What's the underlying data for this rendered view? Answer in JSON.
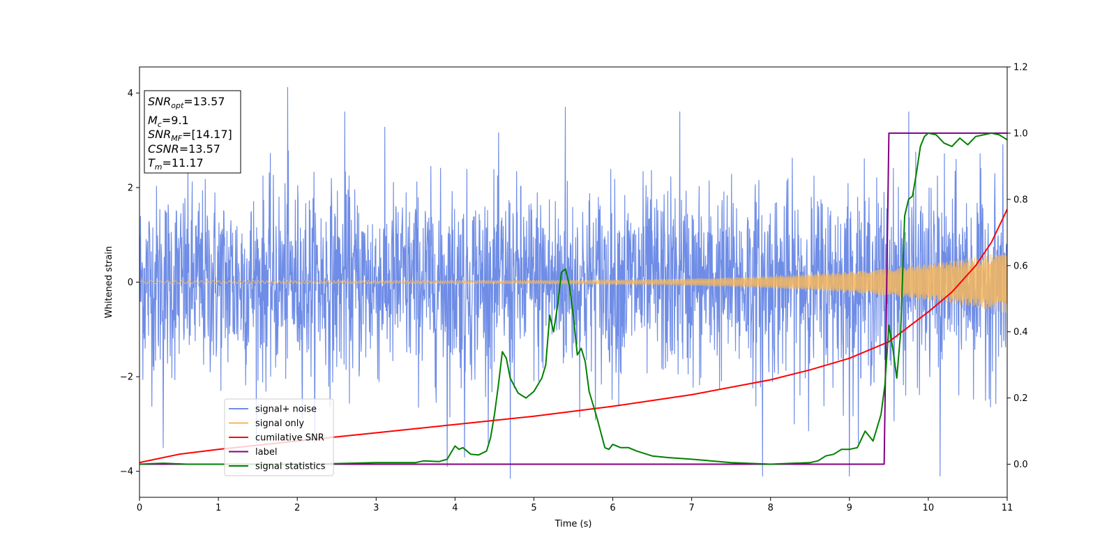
{
  "chart_data": {
    "type": "line",
    "xlabel": "Time (s)",
    "ylabel": "Whitened strain",
    "xlim": [
      0,
      11
    ],
    "ylim": [
      -4.55,
      4.55
    ],
    "y2lim": [
      -0.1,
      1.2
    ],
    "xticks": [
      0,
      1,
      2,
      3,
      4,
      5,
      6,
      7,
      8,
      9,
      10,
      11
    ],
    "yticks": [
      -4,
      -2,
      0,
      2,
      4
    ],
    "y2ticks": [
      "0.0",
      "0.2",
      "0.4",
      "0.6",
      "0.8",
      "1.0",
      "1.2"
    ],
    "y2tick_values": [
      0.0,
      0.2,
      0.4,
      0.6,
      0.8,
      1.0,
      1.2
    ],
    "legend_position": "lower-left",
    "annotation_lines": [
      {
        "main": "SNR",
        "sub": "opt",
        "rest": "=13.57"
      },
      {
        "main": "M",
        "sub": "c",
        "rest": "=9.1"
      },
      {
        "main": "SNR",
        "sub": "MF",
        "rest": "=[14.17]"
      },
      {
        "main": "CSNR",
        "sub": "",
        "rest": "=13.57"
      },
      {
        "main": "T",
        "sub": "m",
        "rest": "=11.17"
      }
    ],
    "series": [
      {
        "name": "signal+ noise",
        "color": "#6f8de6",
        "axis": "left",
        "style": "noise",
        "sigma": 1.0,
        "spikes": [
          [
            1.88,
            4.12
          ],
          [
            2.6,
            3.6
          ],
          [
            5.4,
            3.7
          ],
          [
            6.85,
            3.6
          ],
          [
            9.75,
            3.6
          ],
          [
            4.7,
            -4.15
          ],
          [
            10.15,
            -4.1
          ],
          [
            7.9,
            -4.1
          ],
          [
            9.0,
            -4.1
          ],
          [
            3.9,
            -3.9
          ],
          [
            0.3,
            -3.5
          ],
          [
            4.12,
            -3.7
          ]
        ]
      },
      {
        "name": "signal only",
        "color": "#f6b75d",
        "axis": "left",
        "style": "chirp",
        "amp_start": 0.03,
        "amp_end": 0.65
      },
      {
        "name": "cumilative SNR",
        "color": "#ff0000",
        "axis": "right",
        "x": [
          0,
          0.5,
          1,
          2,
          3,
          4,
          5,
          6,
          7,
          8,
          8.5,
          9,
          9.5,
          10,
          10.3,
          10.6,
          10.8,
          11
        ],
        "y": [
          0.005,
          0.03,
          0.045,
          0.07,
          0.095,
          0.12,
          0.145,
          0.175,
          0.21,
          0.255,
          0.285,
          0.32,
          0.37,
          0.46,
          0.52,
          0.6,
          0.67,
          0.77
        ]
      },
      {
        "name": "label",
        "color": "#800080",
        "axis": "right",
        "x": [
          0,
          9.44,
          9.5,
          11
        ],
        "y": [
          0.0,
          0.0,
          1.0,
          1.0
        ]
      },
      {
        "name": "signal statistics",
        "color": "#008000",
        "axis": "right",
        "x": [
          0,
          0.3,
          0.6,
          1,
          1.5,
          2,
          2.5,
          3,
          3.5,
          3.6,
          3.8,
          3.9,
          3.95,
          4.0,
          4.05,
          4.1,
          4.2,
          4.3,
          4.4,
          4.45,
          4.5,
          4.55,
          4.6,
          4.65,
          4.7,
          4.8,
          4.9,
          5.0,
          5.05,
          5.1,
          5.15,
          5.2,
          5.25,
          5.3,
          5.35,
          5.4,
          5.45,
          5.5,
          5.55,
          5.6,
          5.65,
          5.7,
          5.8,
          5.9,
          5.95,
          6.0,
          6.1,
          6.2,
          6.3,
          6.5,
          6.7,
          7.0,
          7.5,
          8.0,
          8.5,
          8.6,
          8.7,
          8.8,
          8.9,
          9.0,
          9.1,
          9.2,
          9.3,
          9.4,
          9.45,
          9.5,
          9.55,
          9.6,
          9.65,
          9.7,
          9.75,
          9.8,
          9.85,
          9.9,
          9.95,
          10.0,
          10.1,
          10.2,
          10.3,
          10.4,
          10.5,
          10.6,
          10.7,
          10.8,
          10.9,
          11.0
        ],
        "y": [
          0.0,
          0.003,
          0.0,
          0.0,
          0.0,
          0.0,
          0.002,
          0.005,
          0.005,
          0.01,
          0.008,
          0.015,
          0.035,
          0.055,
          0.045,
          0.05,
          0.03,
          0.028,
          0.04,
          0.08,
          0.15,
          0.24,
          0.34,
          0.32,
          0.26,
          0.215,
          0.2,
          0.22,
          0.24,
          0.26,
          0.3,
          0.45,
          0.4,
          0.48,
          0.58,
          0.59,
          0.54,
          0.45,
          0.33,
          0.35,
          0.31,
          0.22,
          0.14,
          0.05,
          0.045,
          0.06,
          0.05,
          0.05,
          0.04,
          0.025,
          0.02,
          0.015,
          0.005,
          0.0,
          0.005,
          0.01,
          0.025,
          0.03,
          0.045,
          0.045,
          0.05,
          0.1,
          0.07,
          0.15,
          0.24,
          0.42,
          0.35,
          0.26,
          0.4,
          0.75,
          0.8,
          0.81,
          0.88,
          0.96,
          0.99,
          1.0,
          0.995,
          0.97,
          0.96,
          0.985,
          0.965,
          0.99,
          0.995,
          1.0,
          0.995,
          0.98
        ]
      }
    ]
  }
}
